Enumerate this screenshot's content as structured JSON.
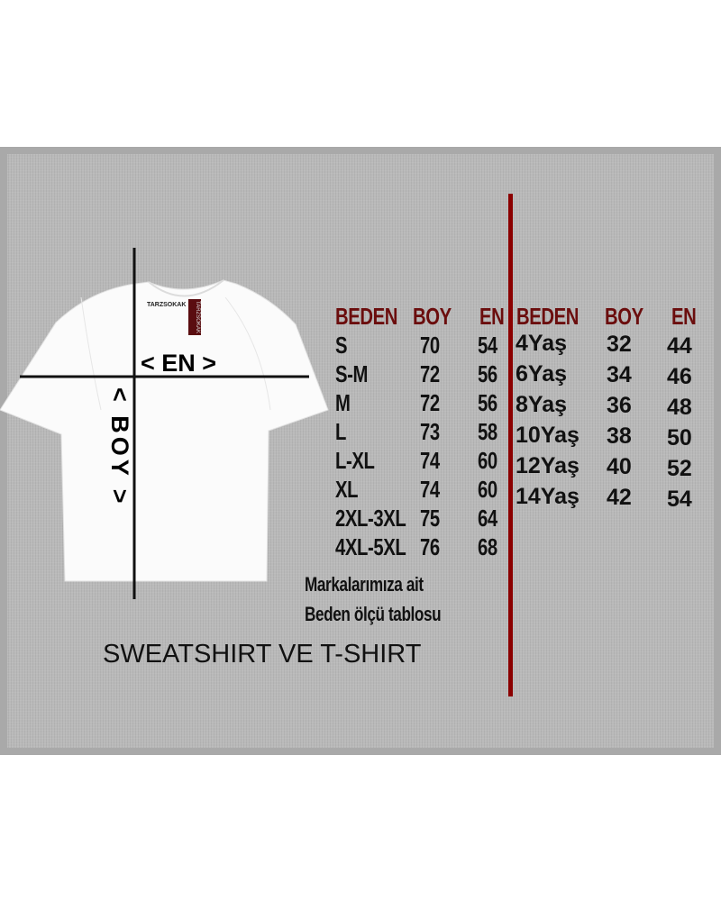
{
  "shirt": {
    "neck_label": "TARZSOKAK",
    "hang_tag": "TARZSOKAK",
    "width_label": "< EN >",
    "length_label": "< BOY >"
  },
  "adult_table": {
    "headers": [
      "BEDEN",
      "BOY",
      "EN"
    ],
    "rows": [
      [
        "S",
        "70",
        "54"
      ],
      [
        "S-M",
        "72",
        "56"
      ],
      [
        "M",
        "72",
        "56"
      ],
      [
        "L",
        "73",
        "58"
      ],
      [
        "L-XL",
        "74",
        "60"
      ],
      [
        "XL",
        "74",
        "60"
      ],
      [
        "2XL-3XL",
        "75",
        "64"
      ],
      [
        "4XL-5XL",
        "76",
        "68"
      ]
    ]
  },
  "kids_table": {
    "headers": [
      "BEDEN",
      "BOY",
      "EN"
    ],
    "rows": [
      [
        "4Yaş",
        "32",
        "44"
      ],
      [
        "6Yaş",
        "34",
        "46"
      ],
      [
        "8Yaş",
        "36",
        "48"
      ],
      [
        "10Yaş",
        "38",
        "50"
      ],
      [
        "12Yaş",
        "40",
        "52"
      ],
      [
        "14Yaş",
        "42",
        "54"
      ]
    ]
  },
  "note_line1": "Markalarımıza ait",
  "note_line2": "Beden ölçü tablosu",
  "title": "SWEATSHIRT VE T-SHIRT",
  "colors": {
    "header": "#6b0d0d",
    "divider": "#8b0000",
    "background": "#b9b9b9"
  }
}
